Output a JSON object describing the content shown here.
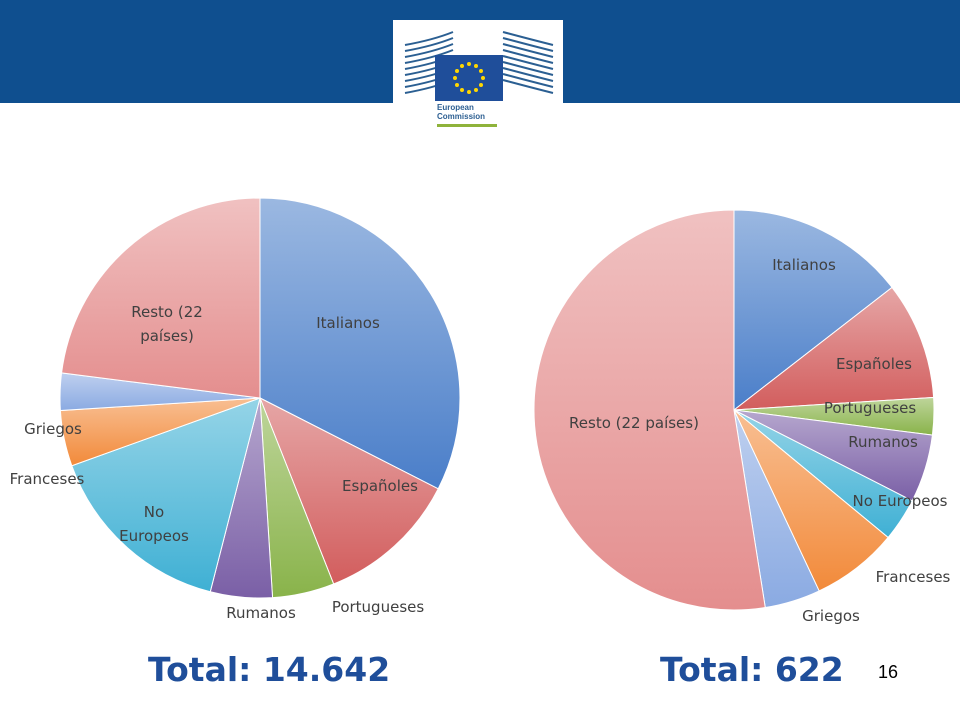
{
  "header": {
    "logo": {
      "icon": "european-commission-logo",
      "text_line1": "European",
      "text_line2": "Commission"
    },
    "bar_color": "#0f4f8f"
  },
  "chart_data": [
    {
      "type": "pie",
      "title": "",
      "total_label": "Total: 14.642",
      "slices": [
        {
          "label": "Italianos",
          "value": 32.5,
          "color": "#4a7ec9"
        },
        {
          "label": "Españoles",
          "value": 11.5,
          "color": "#d25d5d"
        },
        {
          "label": "Portugueses",
          "value": 5.0,
          "color": "#89b34a"
        },
        {
          "label": "Rumanos",
          "value": 5.0,
          "color": "#7a5fa6"
        },
        {
          "label": "No Europeos",
          "value": 15.5,
          "color": "#3fb0d4"
        },
        {
          "label": "Franceses",
          "value": 4.5,
          "color": "#f28a3a"
        },
        {
          "label": "Griegos",
          "value": 3.0,
          "color": "#8aaae2"
        },
        {
          "label": "Resto (22 países)",
          "value": 23.0,
          "color": "#e48e8e"
        }
      ],
      "label_lines": [
        [
          "Italianos"
        ],
        [
          "Españoles"
        ],
        [
          "Portugueses"
        ],
        [
          "Rumanos"
        ],
        [
          "No",
          "Europeos"
        ],
        [
          "Franceses"
        ],
        [
          "Griegos"
        ],
        [
          "Resto (22",
          "países)"
        ]
      ]
    },
    {
      "type": "pie",
      "title": "",
      "total_label": "Total: 622",
      "slices": [
        {
          "label": "Italianos",
          "value": 14.5,
          "color": "#4a7ec9"
        },
        {
          "label": "Españoles",
          "value": 9.5,
          "color": "#d25d5d"
        },
        {
          "label": "Portugueses",
          "value": 3.0,
          "color": "#89b34a"
        },
        {
          "label": "Rumanos",
          "value": 5.5,
          "color": "#7a5fa6"
        },
        {
          "label": "No Europeos",
          "value": 3.5,
          "color": "#3fb0d4"
        },
        {
          "label": "Franceses",
          "value": 7.0,
          "color": "#f28a3a"
        },
        {
          "label": "Griegos",
          "value": 4.5,
          "color": "#8aaae2"
        },
        {
          "label": "Resto (22 países)",
          "value": 52.5,
          "color": "#e48e8e"
        }
      ],
      "label_lines": [
        [
          "Italianos"
        ],
        [
          "Españoles"
        ],
        [
          "Portugueses"
        ],
        [
          "Rumanos"
        ],
        [
          "No Europeos"
        ],
        [
          "Franceses"
        ],
        [
          "Griegos"
        ],
        [
          "Resto (22 países)"
        ]
      ]
    }
  ],
  "page_number": "16"
}
